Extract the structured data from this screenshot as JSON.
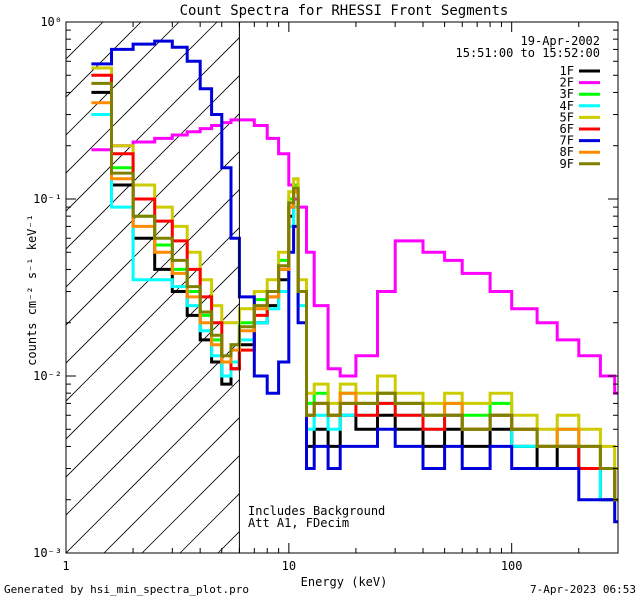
{
  "chart_data": {
    "type": "line",
    "title": "Count Spectra for RHESSI Front Segments",
    "xlabel": "Energy (keV)",
    "ylabel": "counts cm⁻² s⁻¹ keV⁻¹",
    "xscale": "log",
    "yscale": "log",
    "xlim": [
      1,
      300
    ],
    "ylim": [
      0.001,
      1
    ],
    "x_major_ticks": [
      {
        "value": 1,
        "label": "1"
      },
      {
        "value": 10,
        "label": "10"
      },
      {
        "value": 100,
        "label": "100"
      }
    ],
    "y_major_ticks": [
      {
        "value": 0.001,
        "label": "10⁻³"
      },
      {
        "value": 0.01,
        "label": "10⁻²"
      },
      {
        "value": 0.1,
        "label": "10⁻¹"
      },
      {
        "value": 1,
        "label": "10⁰"
      }
    ],
    "date": "19-Apr-2002",
    "time_range": "15:51:00 to 15:52:00",
    "shaded_region": {
      "xmin": 1,
      "xmax": 6,
      "style": "hatched"
    },
    "annotation": [
      "Includes Background",
      "Att A1, FDecim"
    ],
    "legend_position": "top-right",
    "series": [
      {
        "name": "1F",
        "color": "#000000",
        "x": [
          1.3,
          1.6,
          2.0,
          2.5,
          3.0,
          3.5,
          4.0,
          4.5,
          5.0,
          5.5,
          6.0,
          7.0,
          8.0,
          9.0,
          10.0,
          10.5,
          11.0,
          12.0,
          13.0,
          15.0,
          17.0,
          20.0,
          25.0,
          30.0,
          40.0,
          50.0,
          60.0,
          80.0,
          100.0,
          130.0,
          160.0,
          200.0,
          250.0,
          290.0
        ],
        "y": [
          0.4,
          0.12,
          0.06,
          0.04,
          0.03,
          0.022,
          0.016,
          0.012,
          0.009,
          0.011,
          0.015,
          0.02,
          0.025,
          0.035,
          0.08,
          0.1,
          0.03,
          0.004,
          0.005,
          0.004,
          0.006,
          0.005,
          0.006,
          0.005,
          0.004,
          0.005,
          0.004,
          0.005,
          0.004,
          0.003,
          0.004,
          0.003,
          0.002,
          0.002
        ]
      },
      {
        "name": "2F",
        "color": "#ff00ff",
        "x": [
          1.3,
          1.6,
          2.0,
          2.5,
          3.0,
          3.5,
          4.0,
          4.5,
          5.0,
          5.5,
          6.0,
          7.0,
          8.0,
          9.0,
          10.0,
          10.5,
          11.0,
          12.0,
          13.0,
          15.0,
          17.0,
          20.0,
          25.0,
          30.0,
          40.0,
          50.0,
          60.0,
          80.0,
          100.0,
          130.0,
          160.0,
          200.0,
          250.0,
          290.0
        ],
        "y": [
          0.19,
          0.2,
          0.21,
          0.22,
          0.23,
          0.24,
          0.25,
          0.26,
          0.27,
          0.28,
          0.28,
          0.26,
          0.22,
          0.18,
          0.12,
          0.1,
          0.09,
          0.05,
          0.025,
          0.011,
          0.01,
          0.013,
          0.03,
          0.058,
          0.05,
          0.045,
          0.038,
          0.03,
          0.024,
          0.02,
          0.016,
          0.013,
          0.01,
          0.008
        ]
      },
      {
        "name": "3F",
        "color": "#00ff00",
        "x": [
          1.3,
          1.6,
          2.0,
          2.5,
          3.0,
          3.5,
          4.0,
          4.5,
          5.0,
          5.5,
          6.0,
          7.0,
          8.0,
          9.0,
          10.0,
          10.5,
          11.0,
          12.0,
          13.0,
          15.0,
          17.0,
          20.0,
          25.0,
          30.0,
          40.0,
          50.0,
          60.0,
          80.0,
          100.0,
          130.0,
          160.0,
          200.0,
          250.0,
          290.0
        ],
        "y": [
          0.55,
          0.15,
          0.08,
          0.055,
          0.04,
          0.03,
          0.022,
          0.016,
          0.012,
          0.015,
          0.02,
          0.027,
          0.03,
          0.045,
          0.1,
          0.12,
          0.03,
          0.007,
          0.008,
          0.006,
          0.008,
          0.007,
          0.008,
          0.007,
          0.006,
          0.007,
          0.006,
          0.007,
          0.005,
          0.004,
          0.005,
          0.004,
          0.003,
          0.002
        ]
      },
      {
        "name": "4F",
        "color": "#00ffff",
        "x": [
          1.3,
          1.6,
          2.0,
          2.5,
          3.0,
          3.5,
          4.0,
          4.5,
          5.0,
          5.5,
          6.0,
          7.0,
          8.0,
          9.0,
          10.0,
          10.5,
          11.0,
          12.0,
          13.0,
          15.0,
          17.0,
          20.0,
          25.0,
          30.0,
          40.0,
          50.0,
          60.0,
          80.0,
          100.0,
          130.0,
          160.0,
          200.0,
          250.0,
          290.0
        ],
        "y": [
          0.3,
          0.09,
          0.035,
          0.035,
          0.032,
          0.025,
          0.018,
          0.013,
          0.01,
          0.012,
          0.016,
          0.02,
          0.024,
          0.03,
          0.07,
          0.09,
          0.025,
          0.005,
          0.006,
          0.005,
          0.006,
          0.006,
          0.007,
          0.006,
          0.005,
          0.006,
          0.005,
          0.006,
          0.004,
          0.004,
          0.004,
          0.003,
          0.002,
          0.002
        ]
      },
      {
        "name": "5F",
        "color": "#cccc00",
        "x": [
          1.3,
          1.6,
          2.0,
          2.5,
          3.0,
          3.5,
          4.0,
          4.5,
          5.0,
          5.5,
          6.0,
          7.0,
          8.0,
          9.0,
          10.0,
          10.5,
          11.0,
          12.0,
          13.0,
          15.0,
          17.0,
          20.0,
          25.0,
          30.0,
          40.0,
          50.0,
          60.0,
          80.0,
          100.0,
          130.0,
          160.0,
          200.0,
          250.0,
          290.0
        ],
        "y": [
          0.55,
          0.2,
          0.12,
          0.09,
          0.07,
          0.05,
          0.035,
          0.025,
          0.02,
          0.02,
          0.024,
          0.03,
          0.035,
          0.05,
          0.11,
          0.13,
          0.035,
          0.008,
          0.009,
          0.007,
          0.009,
          0.008,
          0.01,
          0.008,
          0.007,
          0.008,
          0.007,
          0.008,
          0.006,
          0.005,
          0.006,
          0.005,
          0.004,
          0.003
        ]
      },
      {
        "name": "6F",
        "color": "#ff0000",
        "x": [
          1.3,
          1.6,
          2.0,
          2.5,
          3.0,
          3.5,
          4.0,
          4.5,
          5.0,
          5.5,
          6.0,
          7.0,
          8.0,
          9.0,
          10.0,
          10.5,
          11.0,
          12.0,
          13.0,
          15.0,
          17.0,
          20.0,
          25.0,
          30.0,
          40.0,
          50.0,
          60.0,
          80.0,
          100.0,
          130.0,
          160.0,
          200.0,
          250.0,
          290.0
        ],
        "y": [
          0.5,
          0.18,
          0.1,
          0.075,
          0.058,
          0.04,
          0.028,
          0.02,
          0.012,
          0.011,
          0.014,
          0.022,
          0.028,
          0.04,
          0.09,
          0.11,
          0.03,
          0.006,
          0.007,
          0.006,
          0.007,
          0.006,
          0.007,
          0.006,
          0.005,
          0.006,
          0.005,
          0.006,
          0.005,
          0.004,
          0.004,
          0.003,
          0.003,
          0.002
        ]
      },
      {
        "name": "7F",
        "color": "#0000dd",
        "x": [
          1.3,
          1.6,
          2.0,
          2.5,
          3.0,
          3.5,
          4.0,
          4.5,
          5.0,
          5.5,
          6.0,
          7.0,
          8.0,
          9.0,
          10.0,
          10.5,
          11.0,
          12.0,
          13.0,
          15.0,
          17.0,
          20.0,
          25.0,
          30.0,
          40.0,
          50.0,
          60.0,
          80.0,
          100.0,
          130.0,
          160.0,
          200.0,
          250.0,
          290.0
        ],
        "y": [
          0.58,
          0.7,
          0.75,
          0.78,
          0.72,
          0.6,
          0.42,
          0.3,
          0.15,
          0.06,
          0.028,
          0.01,
          0.008,
          0.012,
          0.05,
          0.07,
          0.02,
          0.003,
          0.004,
          0.003,
          0.004,
          0.004,
          0.005,
          0.004,
          0.003,
          0.004,
          0.003,
          0.004,
          0.003,
          0.003,
          0.003,
          0.002,
          0.002,
          0.0015
        ]
      },
      {
        "name": "8F",
        "color": "#ff8c00",
        "x": [
          1.3,
          1.6,
          2.0,
          2.5,
          3.0,
          3.5,
          4.0,
          4.5,
          5.0,
          5.5,
          6.0,
          7.0,
          8.0,
          9.0,
          10.0,
          10.5,
          11.0,
          12.0,
          13.0,
          15.0,
          17.0,
          20.0,
          25.0,
          30.0,
          40.0,
          50.0,
          60.0,
          80.0,
          100.0,
          130.0,
          160.0,
          200.0,
          250.0,
          290.0
        ],
        "y": [
          0.35,
          0.13,
          0.07,
          0.05,
          0.038,
          0.028,
          0.02,
          0.015,
          0.012,
          0.014,
          0.018,
          0.024,
          0.028,
          0.04,
          0.09,
          0.11,
          0.03,
          0.006,
          0.007,
          0.006,
          0.008,
          0.007,
          0.008,
          0.007,
          0.006,
          0.007,
          0.005,
          0.006,
          0.005,
          0.004,
          0.005,
          0.004,
          0.003,
          0.002
        ]
      },
      {
        "name": "9F",
        "color": "#808000",
        "x": [
          1.3,
          1.6,
          2.0,
          2.5,
          3.0,
          3.5,
          4.0,
          4.5,
          5.0,
          5.5,
          6.0,
          7.0,
          8.0,
          9.0,
          10.0,
          10.5,
          11.0,
          12.0,
          13.0,
          15.0,
          17.0,
          20.0,
          25.0,
          30.0,
          40.0,
          50.0,
          60.0,
          80.0,
          100.0,
          130.0,
          160.0,
          200.0,
          250.0,
          290.0
        ],
        "y": [
          0.45,
          0.14,
          0.08,
          0.06,
          0.045,
          0.032,
          0.023,
          0.017,
          0.013,
          0.015,
          0.019,
          0.025,
          0.03,
          0.042,
          0.095,
          0.115,
          0.03,
          0.006,
          0.007,
          0.006,
          0.007,
          0.007,
          0.008,
          0.007,
          0.006,
          0.006,
          0.005,
          0.006,
          0.005,
          0.004,
          0.004,
          0.004,
          0.003,
          0.002
        ]
      }
    ]
  },
  "footer": {
    "left": "Generated by hsi_min_spectra_plot.pro",
    "right": "7-Apr-2023 06:53"
  }
}
